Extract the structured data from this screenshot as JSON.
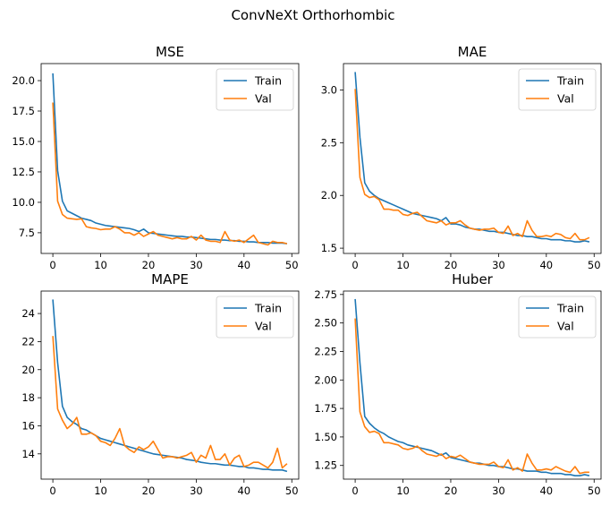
{
  "figure": {
    "suptitle": "ConvNeXt Orthorhombic"
  },
  "colors": {
    "train": "#1f77b4",
    "val": "#ff7f0e"
  },
  "chart_data": [
    {
      "type": "line",
      "title": "MSE",
      "xlim": [
        -2.45,
        51.45
      ],
      "ylim": [
        5.8,
        21.4
      ],
      "xticks": [
        0,
        10,
        20,
        30,
        40,
        50
      ],
      "yticks": [
        7.5,
        10.0,
        12.5,
        15.0,
        17.5,
        20.0
      ],
      "ytick_labels": [
        "7.5",
        "10.0",
        "12.5",
        "15.0",
        "17.5",
        "20.0"
      ],
      "legend": "top-right",
      "x": [
        0,
        1,
        2,
        3,
        4,
        5,
        6,
        7,
        8,
        9,
        10,
        11,
        12,
        13,
        14,
        15,
        16,
        17,
        18,
        19,
        20,
        21,
        22,
        23,
        24,
        25,
        26,
        27,
        28,
        29,
        30,
        31,
        32,
        33,
        34,
        35,
        36,
        37,
        38,
        39,
        40,
        41,
        42,
        43,
        44,
        45,
        46,
        47,
        48,
        49
      ],
      "series": [
        {
          "name": "Train",
          "values": [
            20.6,
            12.6,
            10.1,
            9.3,
            9.1,
            8.9,
            8.7,
            8.6,
            8.5,
            8.3,
            8.2,
            8.1,
            8.05,
            8.0,
            7.95,
            7.9,
            7.85,
            7.75,
            7.6,
            7.8,
            7.5,
            7.45,
            7.4,
            7.35,
            7.3,
            7.25,
            7.2,
            7.2,
            7.15,
            7.15,
            7.1,
            7.05,
            7.0,
            6.95,
            6.95,
            6.9,
            6.9,
            6.85,
            6.85,
            6.8,
            6.8,
            6.75,
            6.75,
            6.7,
            6.7,
            6.7,
            6.65,
            6.65,
            6.65,
            6.6
          ]
        },
        {
          "name": "Val",
          "values": [
            18.2,
            10.1,
            9.0,
            8.7,
            8.65,
            8.6,
            8.65,
            8.0,
            7.9,
            7.85,
            7.75,
            7.8,
            7.8,
            8.0,
            7.8,
            7.5,
            7.5,
            7.3,
            7.5,
            7.2,
            7.4,
            7.6,
            7.3,
            7.2,
            7.1,
            7.0,
            7.1,
            7.0,
            7.0,
            7.2,
            6.9,
            7.3,
            6.9,
            6.8,
            6.8,
            6.7,
            7.6,
            6.9,
            6.8,
            6.9,
            6.7,
            7.0,
            7.3,
            6.7,
            6.6,
            6.5,
            6.8,
            6.7,
            6.7,
            6.6
          ]
        }
      ]
    },
    {
      "type": "line",
      "title": "MAE",
      "xlim": [
        -2.45,
        51.45
      ],
      "ylim": [
        1.45,
        3.25
      ],
      "xticks": [
        0,
        10,
        20,
        30,
        40,
        50
      ],
      "yticks": [
        1.5,
        2.0,
        2.5,
        3.0
      ],
      "ytick_labels": [
        "1.5",
        "2.0",
        "2.5",
        "3.0"
      ],
      "legend": "top-right",
      "x": [
        0,
        1,
        2,
        3,
        4,
        5,
        6,
        7,
        8,
        9,
        10,
        11,
        12,
        13,
        14,
        15,
        16,
        17,
        18,
        19,
        20,
        21,
        22,
        23,
        24,
        25,
        26,
        27,
        28,
        29,
        30,
        31,
        32,
        33,
        34,
        35,
        36,
        37,
        38,
        39,
        40,
        41,
        42,
        43,
        44,
        45,
        46,
        47,
        48,
        49
      ],
      "series": [
        {
          "name": "Train",
          "values": [
            3.17,
            2.55,
            2.12,
            2.04,
            2.0,
            1.97,
            1.95,
            1.93,
            1.91,
            1.89,
            1.87,
            1.85,
            1.83,
            1.82,
            1.81,
            1.8,
            1.79,
            1.78,
            1.76,
            1.79,
            1.73,
            1.73,
            1.72,
            1.7,
            1.69,
            1.68,
            1.68,
            1.67,
            1.66,
            1.66,
            1.65,
            1.65,
            1.64,
            1.63,
            1.62,
            1.62,
            1.61,
            1.61,
            1.6,
            1.59,
            1.59,
            1.58,
            1.58,
            1.58,
            1.57,
            1.57,
            1.56,
            1.56,
            1.57,
            1.56
          ]
        },
        {
          "name": "Val",
          "values": [
            3.01,
            2.17,
            2.01,
            1.98,
            1.99,
            1.96,
            1.87,
            1.87,
            1.86,
            1.86,
            1.82,
            1.81,
            1.83,
            1.84,
            1.8,
            1.76,
            1.75,
            1.74,
            1.76,
            1.72,
            1.74,
            1.74,
            1.76,
            1.72,
            1.69,
            1.68,
            1.67,
            1.68,
            1.68,
            1.69,
            1.65,
            1.64,
            1.71,
            1.62,
            1.64,
            1.61,
            1.76,
            1.67,
            1.61,
            1.61,
            1.62,
            1.61,
            1.64,
            1.63,
            1.6,
            1.59,
            1.64,
            1.58,
            1.58,
            1.6
          ]
        }
      ]
    },
    {
      "type": "line",
      "title": "MAPE",
      "xlim": [
        -2.45,
        51.45
      ],
      "ylim": [
        12.2,
        25.6
      ],
      "xticks": [
        0,
        10,
        20,
        30,
        40,
        50
      ],
      "yticks": [
        14,
        16,
        18,
        20,
        22,
        24
      ],
      "ytick_labels": [
        "14",
        "16",
        "18",
        "20",
        "22",
        "24"
      ],
      "legend": "top-right",
      "x": [
        0,
        1,
        2,
        3,
        4,
        5,
        6,
        7,
        8,
        9,
        10,
        11,
        12,
        13,
        14,
        15,
        16,
        17,
        18,
        19,
        20,
        21,
        22,
        23,
        24,
        25,
        26,
        27,
        28,
        29,
        30,
        31,
        32,
        33,
        34,
        35,
        36,
        37,
        38,
        39,
        40,
        41,
        42,
        43,
        44,
        45,
        46,
        47,
        48,
        49
      ],
      "series": [
        {
          "name": "Train",
          "values": [
            25.0,
            20.5,
            17.4,
            16.6,
            16.3,
            16.1,
            15.8,
            15.7,
            15.5,
            15.3,
            15.1,
            15.0,
            14.9,
            14.8,
            14.7,
            14.6,
            14.5,
            14.4,
            14.3,
            14.2,
            14.1,
            14.0,
            13.95,
            13.9,
            13.85,
            13.8,
            13.75,
            13.7,
            13.6,
            13.55,
            13.5,
            13.4,
            13.35,
            13.3,
            13.3,
            13.25,
            13.2,
            13.2,
            13.15,
            13.1,
            13.1,
            13.0,
            13.0,
            12.95,
            12.9,
            12.9,
            12.85,
            12.85,
            12.85,
            12.75
          ]
        },
        {
          "name": "Val",
          "values": [
            22.4,
            17.2,
            16.4,
            15.8,
            16.1,
            16.6,
            15.4,
            15.4,
            15.5,
            15.3,
            14.9,
            14.8,
            14.6,
            15.1,
            15.8,
            14.6,
            14.3,
            14.1,
            14.5,
            14.3,
            14.5,
            14.9,
            14.3,
            13.7,
            13.8,
            13.8,
            13.7,
            13.8,
            13.9,
            14.1,
            13.4,
            13.9,
            13.7,
            14.6,
            13.6,
            13.6,
            14.0,
            13.2,
            13.7,
            13.9,
            13.1,
            13.2,
            13.4,
            13.4,
            13.2,
            13.0,
            13.4,
            14.4,
            13.0,
            13.3
          ]
        }
      ]
    },
    {
      "type": "line",
      "title": "Huber",
      "xlim": [
        -2.45,
        51.45
      ],
      "ylim": [
        1.13,
        2.78
      ],
      "xticks": [
        0,
        10,
        20,
        30,
        40,
        50
      ],
      "yticks": [
        1.25,
        1.5,
        1.75,
        2.0,
        2.25,
        2.5,
        2.75
      ],
      "ytick_labels": [
        "1.25",
        "1.50",
        "1.75",
        "2.00",
        "2.25",
        "2.50",
        "2.75"
      ],
      "legend": "top-right",
      "x": [
        0,
        1,
        2,
        3,
        4,
        5,
        6,
        7,
        8,
        9,
        10,
        11,
        12,
        13,
        14,
        15,
        16,
        17,
        18,
        19,
        20,
        21,
        22,
        23,
        24,
        25,
        26,
        27,
        28,
        29,
        30,
        31,
        32,
        33,
        34,
        35,
        36,
        37,
        38,
        39,
        40,
        41,
        42,
        43,
        44,
        45,
        46,
        47,
        48,
        49
      ],
      "series": [
        {
          "name": "Train",
          "values": [
            2.71,
            2.15,
            1.68,
            1.62,
            1.58,
            1.55,
            1.53,
            1.5,
            1.48,
            1.46,
            1.45,
            1.43,
            1.42,
            1.41,
            1.4,
            1.39,
            1.38,
            1.36,
            1.34,
            1.36,
            1.32,
            1.31,
            1.3,
            1.29,
            1.28,
            1.27,
            1.27,
            1.26,
            1.25,
            1.25,
            1.24,
            1.24,
            1.23,
            1.22,
            1.22,
            1.21,
            1.2,
            1.2,
            1.2,
            1.19,
            1.19,
            1.18,
            1.18,
            1.18,
            1.17,
            1.17,
            1.16,
            1.16,
            1.17,
            1.16
          ]
        },
        {
          "name": "Val",
          "values": [
            2.54,
            1.72,
            1.59,
            1.54,
            1.55,
            1.53,
            1.45,
            1.45,
            1.44,
            1.43,
            1.4,
            1.39,
            1.4,
            1.42,
            1.38,
            1.35,
            1.34,
            1.33,
            1.35,
            1.31,
            1.33,
            1.32,
            1.34,
            1.31,
            1.28,
            1.27,
            1.26,
            1.26,
            1.26,
            1.28,
            1.24,
            1.23,
            1.3,
            1.21,
            1.23,
            1.2,
            1.35,
            1.27,
            1.21,
            1.21,
            1.22,
            1.21,
            1.24,
            1.22,
            1.2,
            1.19,
            1.24,
            1.18,
            1.19,
            1.19
          ]
        }
      ]
    }
  ]
}
